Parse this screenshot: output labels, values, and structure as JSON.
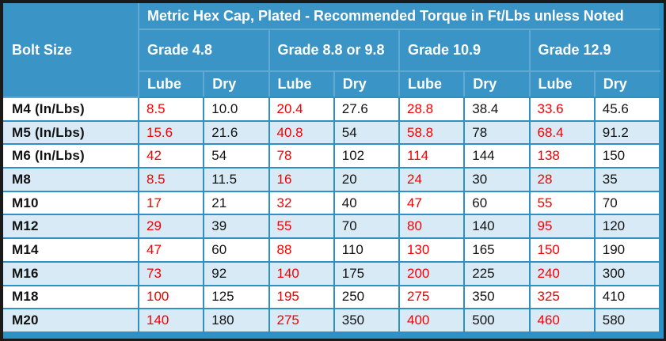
{
  "chart_data": {
    "type": "table",
    "title": "Metric Hex Cap, Plated - Recommended Torque in Ft/Lbs unless Noted",
    "corner_header": "Bolt Size",
    "group_headers": [
      "Grade 4.8",
      "Grade 8.8 or 9.8",
      "Grade 10.9",
      "Grade 12.9"
    ],
    "sub_headers": [
      "Lube",
      "Dry"
    ],
    "rows": [
      {
        "bolt_size": "M4 (In/Lbs)",
        "values": [
          "8.5",
          "10.0",
          "20.4",
          "27.6",
          "28.8",
          "38.4",
          "33.6",
          "45.6"
        ]
      },
      {
        "bolt_size": "M5 (In/Lbs)",
        "values": [
          "15.6",
          "21.6",
          "40.8",
          "54",
          "58.8",
          "78",
          "68.4",
          "91.2"
        ]
      },
      {
        "bolt_size": "M6 (In/Lbs)",
        "values": [
          "42",
          "54",
          "78",
          "102",
          "114",
          "144",
          "138",
          "150"
        ]
      },
      {
        "bolt_size": "M8",
        "values": [
          "8.5",
          "11.5",
          "16",
          "20",
          "24",
          "30",
          "28",
          "35"
        ]
      },
      {
        "bolt_size": "M10",
        "values": [
          "17",
          "21",
          "32",
          "40",
          "47",
          "60",
          "55",
          "70"
        ]
      },
      {
        "bolt_size": "M12",
        "values": [
          "29",
          "39",
          "55",
          "70",
          "80",
          "140",
          "95",
          "120"
        ]
      },
      {
        "bolt_size": "M14",
        "values": [
          "47",
          "60",
          "88",
          "110",
          "130",
          "165",
          "150",
          "190"
        ]
      },
      {
        "bolt_size": "M16",
        "values": [
          "73",
          "92",
          "140",
          "175",
          "200",
          "225",
          "240",
          "300"
        ]
      },
      {
        "bolt_size": "M18",
        "values": [
          "100",
          "125",
          "195",
          "250",
          "275",
          "350",
          "325",
          "410"
        ]
      },
      {
        "bolt_size": "M20",
        "values": [
          "140",
          "180",
          "275",
          "350",
          "400",
          "500",
          "460",
          "580"
        ]
      }
    ]
  },
  "colors": {
    "header_blue": "#3b94c6",
    "header_separator": "#5fa9d3",
    "grid_blue": "#2f90c5",
    "row_alt_blue": "#d7eaf5",
    "lube_value_red": "#f40000",
    "outer_frame": "#1a1a1a"
  }
}
